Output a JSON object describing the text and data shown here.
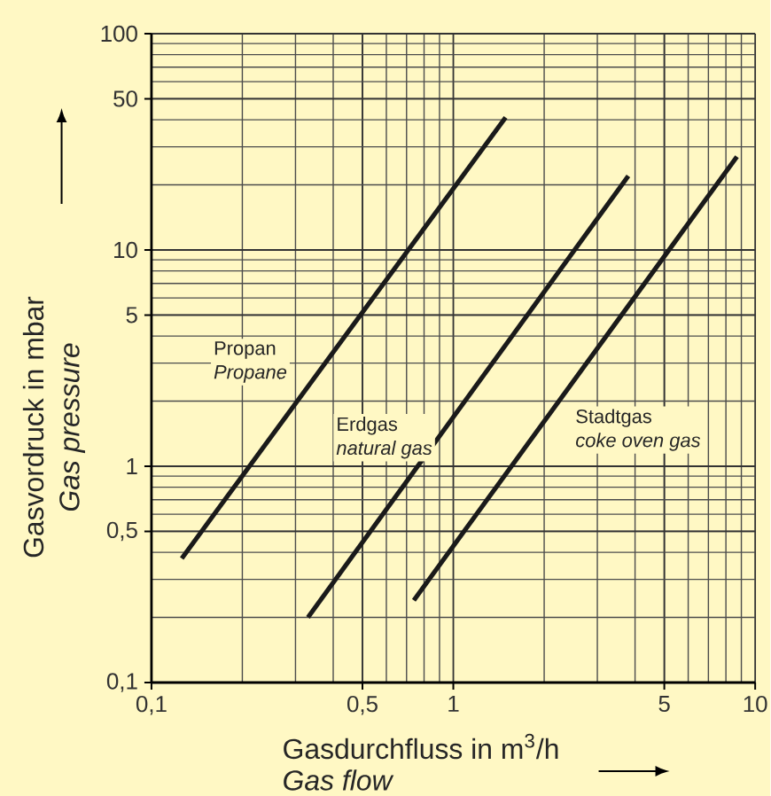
{
  "chart_data": {
    "type": "line",
    "xlabel": "Gasdurchfluss in m$^{3}$/h",
    "ylabel": "Gasvordruck in mbar",
    "log": "xy",
    "grid": true,
    "xlim": [
      0.1,
      10
    ],
    "ylim": [
      0.1,
      100
    ],
    "xticks": [
      {
        "value": 0.1,
        "label": "0,1"
      },
      {
        "value": 0.5,
        "label": "0,5"
      },
      1,
      5,
      10
    ],
    "yticks": [
      {
        "value": 0.1,
        "label": "0,1"
      },
      {
        "value": 0.5,
        "label": "0,5"
      },
      1,
      5,
      10,
      50,
      100
    ],
    "series": [
      {
        "name": "Propan",
        "color": "#1a1a1a",
        "x": [
          0.126,
          1.49
        ],
        "values": [
          0.375,
          41
        ]
      },
      {
        "name": "Erdgas",
        "color": "#1a1a1a",
        "x": [
          0.33,
          3.8
        ],
        "values": [
          0.2,
          22
        ]
      },
      {
        "name": "Stadtgas",
        "color": "#1a1a1a",
        "x": [
          0.74,
          8.7
        ],
        "values": [
          0.24,
          27
        ]
      }
    ],
    "annotations": [
      "*Propane*",
      "*natural gas*",
      "*coke oven gas*",
      "*Gas pressure*",
      "*Gas flow*"
    ]
  }
}
